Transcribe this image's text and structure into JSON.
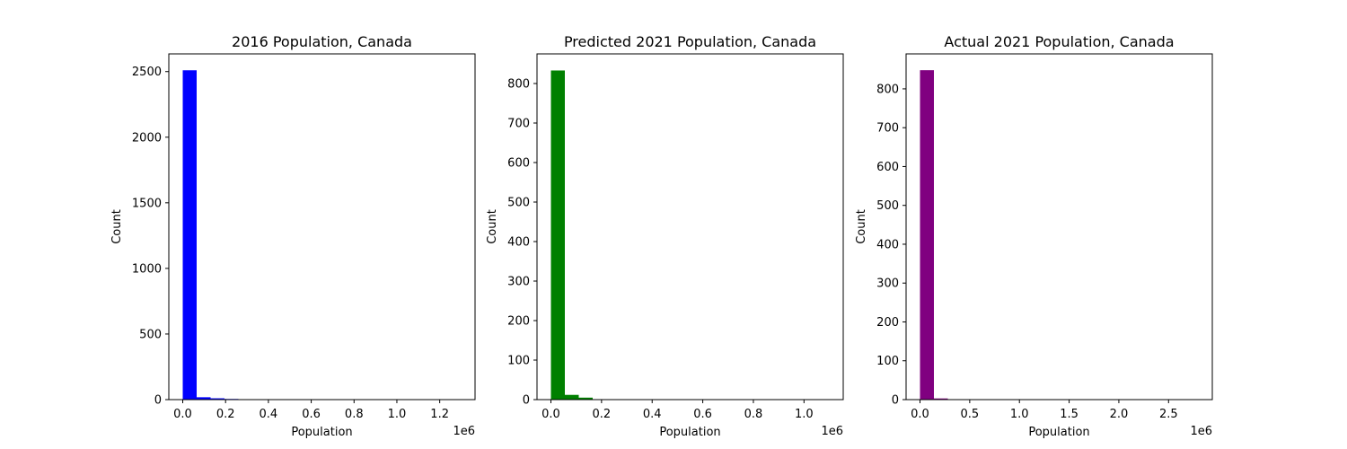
{
  "chart_data": [
    {
      "type": "bar",
      "title": "2016 Population, Canada",
      "xlabel": "Population",
      "ylabel": "Count",
      "x_offset_label": "1e6",
      "color": "#0000ff",
      "bin_width": 65000,
      "bins": [
        {
          "x0": 0,
          "count": 2510
        },
        {
          "x0": 65000,
          "count": 18
        },
        {
          "x0": 130000,
          "count": 10
        },
        {
          "x0": 195000,
          "count": 5
        },
        {
          "x0": 260000,
          "count": 2
        },
        {
          "x0": 325000,
          "count": 1
        },
        {
          "x0": 390000,
          "count": 1
        }
      ],
      "xlim": [
        -0.065,
        1.365
      ],
      "ylim": [
        0,
        2635
      ],
      "xticks": [
        {
          "value": 0,
          "label": "0.0"
        },
        {
          "value": 0.2,
          "label": "0.2"
        },
        {
          "value": 0.4,
          "label": "0.4"
        },
        {
          "value": 0.6,
          "label": "0.6"
        },
        {
          "value": 0.8,
          "label": "0.8"
        },
        {
          "value": 1.0,
          "label": "1.0"
        },
        {
          "value": 1.2,
          "label": "1.2"
        }
      ],
      "yticks": [
        {
          "value": 0,
          "label": "0"
        },
        {
          "value": 500,
          "label": "500"
        },
        {
          "value": 1000,
          "label": "1000"
        },
        {
          "value": 1500,
          "label": "1500"
        },
        {
          "value": 2000,
          "label": "2000"
        },
        {
          "value": 2500,
          "label": "2500"
        }
      ]
    },
    {
      "type": "bar",
      "title": "Predicted 2021 Population, Canada",
      "xlabel": "Population",
      "ylabel": "Count",
      "x_offset_label": "1e6",
      "color": "#008000",
      "bin_width": 55000,
      "bins": [
        {
          "x0": 0,
          "count": 833
        },
        {
          "x0": 55000,
          "count": 12
        },
        {
          "x0": 110000,
          "count": 5
        },
        {
          "x0": 165000,
          "count": 1
        },
        {
          "x0": 220000,
          "count": 1
        }
      ],
      "xlim": [
        -0.055,
        1.155
      ],
      "ylim": [
        0,
        875
      ],
      "xticks": [
        {
          "value": 0,
          "label": "0.0"
        },
        {
          "value": 0.2,
          "label": "0.2"
        },
        {
          "value": 0.4,
          "label": "0.4"
        },
        {
          "value": 0.6,
          "label": "0.6"
        },
        {
          "value": 0.8,
          "label": "0.8"
        },
        {
          "value": 1.0,
          "label": "1.0"
        }
      ],
      "yticks": [
        {
          "value": 0,
          "label": "0"
        },
        {
          "value": 100,
          "label": "100"
        },
        {
          "value": 200,
          "label": "200"
        },
        {
          "value": 300,
          "label": "300"
        },
        {
          "value": 400,
          "label": "400"
        },
        {
          "value": 500,
          "label": "500"
        },
        {
          "value": 600,
          "label": "600"
        },
        {
          "value": 700,
          "label": "700"
        },
        {
          "value": 800,
          "label": "800"
        }
      ]
    },
    {
      "type": "bar",
      "title": "Actual 2021 Population, Canada",
      "xlabel": "Population",
      "ylabel": "Count",
      "x_offset_label": "1e6",
      "color": "#800080",
      "bin_width": 140000,
      "bins": [
        {
          "x0": 0,
          "count": 848
        },
        {
          "x0": 140000,
          "count": 3
        },
        {
          "x0": 280000,
          "count": 1
        }
      ],
      "xlim": [
        -0.14,
        2.94
      ],
      "ylim": [
        0,
        890
      ],
      "xticks": [
        {
          "value": 0,
          "label": "0.0"
        },
        {
          "value": 0.5,
          "label": "0.5"
        },
        {
          "value": 1.0,
          "label": "1.0"
        },
        {
          "value": 1.5,
          "label": "1.5"
        },
        {
          "value": 2.0,
          "label": "2.0"
        },
        {
          "value": 2.5,
          "label": "2.5"
        }
      ],
      "yticks": [
        {
          "value": 0,
          "label": "0"
        },
        {
          "value": 100,
          "label": "100"
        },
        {
          "value": 200,
          "label": "200"
        },
        {
          "value": 300,
          "label": "300"
        },
        {
          "value": 400,
          "label": "400"
        },
        {
          "value": 500,
          "label": "500"
        },
        {
          "value": 600,
          "label": "600"
        },
        {
          "value": 700,
          "label": "700"
        },
        {
          "value": 800,
          "label": "800"
        }
      ]
    }
  ]
}
